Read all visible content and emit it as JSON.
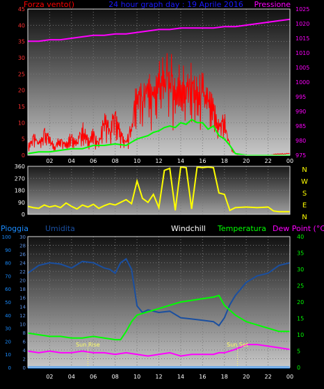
{
  "colors": {
    "wind": "#ff0000",
    "gust": "#00ff00",
    "pressure": "#ff00ff",
    "direction": "#ffff00",
    "humidity": "#1a4fa0",
    "temperature": "#00ff00",
    "dewpoint": "#ff00ff",
    "rain": "#1a8cff",
    "title": "#1a1aff",
    "windchill": "#ffffff",
    "sun": "#ffff66"
  },
  "header": {
    "left_label": "Forza vento()",
    "title": "24 hour graph day : 19 Aprile 2016",
    "right_label": "Pressione"
  },
  "compass_labels": [
    "N",
    "W",
    "S",
    "E",
    "N"
  ],
  "bottom_legend": {
    "rain": "Pioggia",
    "humidity": "Umidita",
    "windchill": "Windchill",
    "temperature": "Temperatura",
    "dewpoint": "Dew Point (°C)"
  },
  "annotations": {
    "sunrise": "Sun Rise",
    "sunset": "Sun Set"
  },
  "chart_data": [
    {
      "type": "line",
      "xlabel": "",
      "x_ticks": [
        "02",
        "04",
        "06",
        "08",
        "10",
        "12",
        "14",
        "16",
        "18",
        "20",
        "22",
        "00"
      ],
      "xlim": [
        0,
        24
      ],
      "ylabel": "Forza vento()",
      "ylim": [
        0,
        45
      ],
      "y_ticks": [
        0,
        5,
        10,
        15,
        20,
        25,
        30,
        35,
        40,
        45
      ],
      "y2label": "Pressione",
      "y2lim": [
        975,
        1025
      ],
      "y2_ticks": [
        975,
        980,
        985,
        990,
        995,
        1000,
        1005,
        1010,
        1015,
        1020,
        1025
      ],
      "series": [
        {
          "axis": "left",
          "style": "spiky",
          "points": [
            [
              0,
              3
            ],
            [
              0.5,
              6
            ],
            [
              1,
              4
            ],
            [
              1.5,
              8
            ],
            [
              2,
              5
            ],
            [
              2.5,
              3
            ],
            [
              3,
              6
            ],
            [
              3.5,
              4
            ],
            [
              4,
              7
            ],
            [
              4.5,
              4
            ],
            [
              5,
              9
            ],
            [
              5.5,
              5
            ],
            [
              6,
              7
            ],
            [
              6.5,
              4
            ],
            [
              7,
              12
            ],
            [
              7.5,
              8
            ],
            [
              8,
              14
            ],
            [
              8.5,
              7
            ],
            [
              9,
              4
            ],
            [
              9.5,
              10
            ],
            [
              10,
              22
            ],
            [
              10.5,
              18
            ],
            [
              11,
              24
            ],
            [
              11.5,
              20
            ],
            [
              12,
              27
            ],
            [
              12.5,
              25
            ],
            [
              13,
              28
            ],
            [
              13.5,
              22
            ],
            [
              14,
              26
            ],
            [
              14.5,
              22
            ],
            [
              15,
              25
            ],
            [
              15.5,
              20
            ],
            [
              16,
              22
            ],
            [
              16.5,
              18
            ],
            [
              17,
              15
            ],
            [
              17.5,
              10
            ],
            [
              18,
              12
            ],
            [
              18.5,
              3
            ],
            [
              19,
              0.5
            ],
            [
              20,
              0
            ],
            [
              21,
              0
            ],
            [
              22,
              0
            ],
            [
              23,
              0.5
            ],
            [
              24,
              0.5
            ]
          ]
        },
        {
          "axis": "left",
          "points": [
            [
              0,
              0.5
            ],
            [
              1,
              1
            ],
            [
              2,
              1
            ],
            [
              3,
              1.5
            ],
            [
              4,
              2
            ],
            [
              5,
              2
            ],
            [
              6,
              3
            ],
            [
              7,
              3
            ],
            [
              8,
              3.5
            ],
            [
              9,
              3
            ],
            [
              9.5,
              4
            ],
            [
              10,
              5
            ],
            [
              10.5,
              5.5
            ],
            [
              11,
              6
            ],
            [
              11.5,
              7
            ],
            [
              12,
              7.5
            ],
            [
              12.5,
              8.5
            ],
            [
              13,
              9
            ],
            [
              13.5,
              8.5
            ],
            [
              14,
              10
            ],
            [
              14.5,
              9.5
            ],
            [
              15,
              11
            ],
            [
              15.5,
              10
            ],
            [
              16,
              10
            ],
            [
              16.5,
              8
            ],
            [
              17,
              9
            ],
            [
              17.5,
              6
            ],
            [
              18,
              5
            ],
            [
              18.5,
              3
            ],
            [
              19,
              0.5
            ],
            [
              20,
              0
            ],
            [
              24,
              0
            ]
          ]
        },
        {
          "axis": "right",
          "points": [
            [
              0,
              1014
            ],
            [
              1,
              1014
            ],
            [
              2,
              1014.5
            ],
            [
              3,
              1014.5
            ],
            [
              4,
              1015
            ],
            [
              5,
              1015.5
            ],
            [
              6,
              1016
            ],
            [
              7,
              1016
            ],
            [
              8,
              1016.5
            ],
            [
              9,
              1016.5
            ],
            [
              10,
              1017
            ],
            [
              11,
              1017.5
            ],
            [
              12,
              1018
            ],
            [
              13,
              1018
            ],
            [
              14,
              1018.5
            ],
            [
              15,
              1018.5
            ],
            [
              16,
              1018.5
            ],
            [
              17,
              1018.5
            ],
            [
              18,
              1019
            ],
            [
              19,
              1019
            ],
            [
              20,
              1019.5
            ],
            [
              21,
              1020
            ],
            [
              22,
              1020.5
            ],
            [
              23,
              1021
            ],
            [
              24,
              1021.5
            ]
          ]
        }
      ]
    },
    {
      "type": "line",
      "xlim": [
        0,
        24
      ],
      "ylim": [
        0,
        360
      ],
      "y_ticks": [
        0,
        90,
        180,
        270,
        360
      ],
      "series": [
        {
          "axis": "left",
          "points": [
            [
              0,
              60
            ],
            [
              0.5,
              50
            ],
            [
              1,
              45
            ],
            [
              1.5,
              70
            ],
            [
              2,
              55
            ],
            [
              2.5,
              65
            ],
            [
              3,
              50
            ],
            [
              3.5,
              85
            ],
            [
              4,
              60
            ],
            [
              4.5,
              40
            ],
            [
              5,
              70
            ],
            [
              5.5,
              55
            ],
            [
              6,
              75
            ],
            [
              6.5,
              45
            ],
            [
              7,
              65
            ],
            [
              7.5,
              80
            ],
            [
              8,
              70
            ],
            [
              8.5,
              90
            ],
            [
              9,
              110
            ],
            [
              9.5,
              80
            ],
            [
              10,
              250
            ],
            [
              10.5,
              120
            ],
            [
              11,
              90
            ],
            [
              11.5,
              150
            ],
            [
              12,
              50
            ],
            [
              12.5,
              330
            ],
            [
              13,
              345
            ],
            [
              13.5,
              30
            ],
            [
              14,
              355
            ],
            [
              14.5,
              350
            ],
            [
              15,
              40
            ],
            [
              15.5,
              355
            ],
            [
              16,
              350
            ],
            [
              16.5,
              355
            ],
            [
              17,
              350
            ],
            [
              17.5,
              160
            ],
            [
              18,
              150
            ],
            [
              18.5,
              30
            ],
            [
              19,
              50
            ],
            [
              20,
              55
            ],
            [
              21,
              50
            ],
            [
              22,
              55
            ],
            [
              22.5,
              25
            ],
            [
              23,
              20
            ],
            [
              24,
              20
            ]
          ]
        }
      ]
    },
    {
      "type": "line",
      "xlim": [
        0,
        24
      ],
      "ylim": [
        0,
        30
      ],
      "y_ticks": [
        0,
        2,
        4,
        6,
        8,
        10,
        12,
        14,
        16,
        18,
        20,
        22,
        24,
        26,
        28,
        30
      ],
      "y2lim": [
        0,
        40
      ],
      "y2_ticks": [
        0,
        5,
        10,
        15,
        20,
        25,
        30,
        35,
        40
      ],
      "y3lim": [
        0,
        100
      ],
      "y3_ticks": [
        0,
        10,
        20,
        30,
        40,
        50,
        60,
        70,
        80,
        90,
        100
      ],
      "series": [
        {
          "axis": "y3",
          "points": [
            [
              0,
              72
            ],
            [
              0.5,
              75
            ],
            [
              1,
              78
            ],
            [
              2,
              80
            ],
            [
              3,
              79
            ],
            [
              4,
              76
            ],
            [
              5,
              81
            ],
            [
              6,
              80
            ],
            [
              7,
              76
            ],
            [
              7.5,
              75
            ],
            [
              8,
              72
            ],
            [
              8.5,
              80
            ],
            [
              9,
              83
            ],
            [
              9.5,
              75
            ],
            [
              10,
              47
            ],
            [
              10.5,
              42
            ],
            [
              11,
              44
            ],
            [
              12,
              42
            ],
            [
              13,
              43
            ],
            [
              14,
              38
            ],
            [
              15,
              37
            ],
            [
              16,
              36
            ],
            [
              17,
              35
            ],
            [
              17.5,
              32
            ],
            [
              18,
              38
            ],
            [
              18.5,
              48
            ],
            [
              19,
              55
            ],
            [
              20,
              65
            ],
            [
              21,
              70
            ],
            [
              22,
              72
            ],
            [
              23,
              78
            ],
            [
              24,
              80
            ]
          ]
        },
        {
          "axis": "y2",
          "points": [
            [
              0,
              10.5
            ],
            [
              1,
              10
            ],
            [
              2,
              9.5
            ],
            [
              3,
              9.5
            ],
            [
              4,
              9
            ],
            [
              5,
              9
            ],
            [
              6,
              9.5
            ],
            [
              7,
              9
            ],
            [
              8,
              8.5
            ],
            [
              8.5,
              8.5
            ],
            [
              9,
              11
            ],
            [
              9.5,
              14
            ],
            [
              10,
              16
            ],
            [
              11,
              17
            ],
            [
              12,
              18
            ],
            [
              13,
              19
            ],
            [
              14,
              20
            ],
            [
              15,
              20.5
            ],
            [
              16,
              21
            ],
            [
              17,
              21.5
            ],
            [
              17.5,
              22
            ],
            [
              18,
              19
            ],
            [
              19,
              16
            ],
            [
              20,
              14
            ],
            [
              21,
              13
            ],
            [
              22,
              12
            ],
            [
              23,
              11
            ],
            [
              24,
              11
            ]
          ]
        },
        {
          "axis": "y2",
          "points": [
            [
              0,
              5
            ],
            [
              1,
              4.5
            ],
            [
              2,
              5
            ],
            [
              3,
              4.5
            ],
            [
              4,
              4.5
            ],
            [
              5,
              5
            ],
            [
              6,
              4.5
            ],
            [
              7,
              4.5
            ],
            [
              8,
              4
            ],
            [
              9,
              4.5
            ],
            [
              10,
              4
            ],
            [
              11,
              3.5
            ],
            [
              12,
              4
            ],
            [
              13,
              4.5
            ],
            [
              14,
              3.5
            ],
            [
              15,
              4
            ],
            [
              16,
              4
            ],
            [
              17,
              4
            ],
            [
              17.5,
              4.5
            ],
            [
              18,
              4.5
            ],
            [
              19,
              5.5
            ],
            [
              20,
              7
            ],
            [
              21,
              7
            ],
            [
              22,
              6.5
            ],
            [
              23,
              6
            ],
            [
              24,
              5.5
            ]
          ]
        },
        {
          "axis": "y3",
          "points": [
            [
              0,
              0
            ],
            [
              24,
              0
            ]
          ]
        }
      ]
    }
  ]
}
